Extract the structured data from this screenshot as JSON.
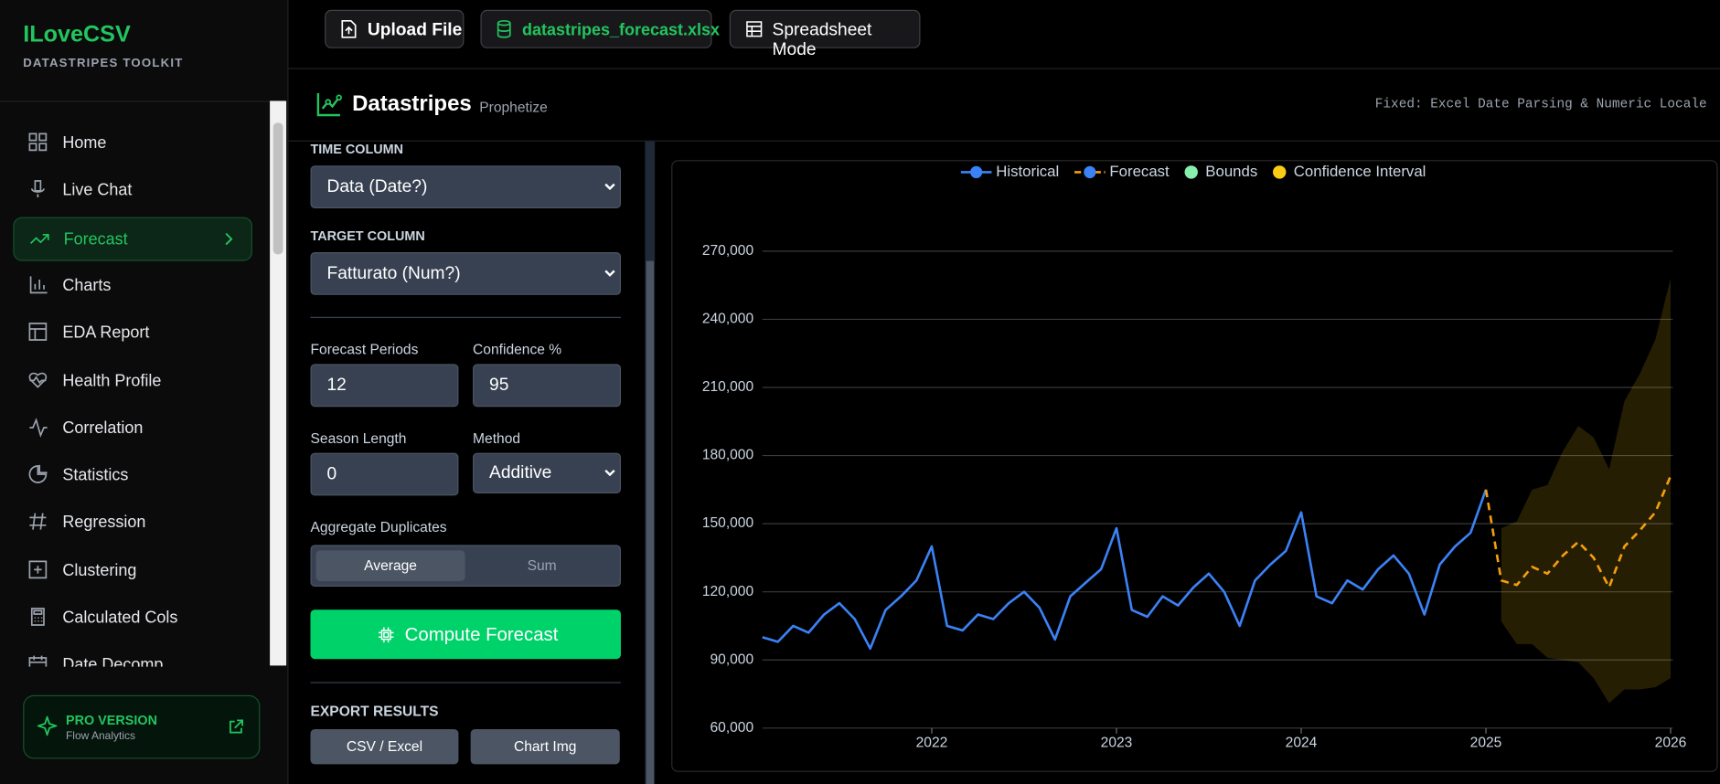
{
  "sidebar": {
    "brand": "ILoveCSV",
    "tagline": "DATASTRIPES TOOLKIT",
    "nav": [
      "Home",
      "Live Chat",
      "Forecast",
      "Charts",
      "EDA Report",
      "Health Profile",
      "Correlation",
      "Statistics",
      "Regression",
      "Clustering",
      "Calculated Cols",
      "Date Decomp"
    ],
    "pro": {
      "title": "PRO VERSION",
      "subtitle": "Flow Analytics"
    }
  },
  "toolbar": {
    "upload": "Upload File",
    "file": "datastripes_forecast.xlsx",
    "mode": "Spreadsheet Mode"
  },
  "header": {
    "title": "Datastripes",
    "subtitle": "Prophetize",
    "note": "Fixed: Excel Date Parsing & Numeric Locale"
  },
  "form": {
    "time_label": "TIME COLUMN",
    "time_value": "Data (Date?)",
    "target_label": "TARGET COLUMN",
    "target_value": "Fatturato (Num?)",
    "periods_label": "Forecast Periods",
    "periods_value": 12,
    "confidence_label": "Confidence %",
    "confidence_value": 95,
    "season_label": "Season Length",
    "season_value": 0,
    "method_label": "Method",
    "method_value": "Additive",
    "aggregate_label": "Aggregate Duplicates",
    "aggregate_options": [
      "Average",
      "Sum"
    ],
    "compute": "Compute Forecast",
    "export_label": "EXPORT RESULTS",
    "export_buttons": [
      "CSV / Excel",
      "Chart Img"
    ]
  },
  "chart_data": {
    "type": "line",
    "x": [
      2021.083,
      2021.167,
      2021.25,
      2021.333,
      2021.417,
      2021.5,
      2021.583,
      2021.667,
      2021.75,
      2021.833,
      2021.917,
      2022,
      2022.083,
      2022.167,
      2022.25,
      2022.333,
      2022.417,
      2022.5,
      2022.583,
      2022.667,
      2022.75,
      2022.833,
      2022.917,
      2023,
      2023.083,
      2023.167,
      2023.25,
      2023.333,
      2023.417,
      2023.5,
      2023.583,
      2023.667,
      2023.75,
      2023.833,
      2023.917,
      2024,
      2024.083,
      2024.167,
      2024.25,
      2024.333,
      2024.417,
      2024.5,
      2024.583,
      2024.667,
      2024.75,
      2024.833,
      2024.917,
      2025,
      2025.083,
      2025.167,
      2025.25,
      2025.333,
      2025.417,
      2025.5,
      2025.583,
      2025.667,
      2025.75,
      2025.833,
      2025.917,
      2026
    ],
    "series": [
      {
        "name": "Historical",
        "type": "line",
        "color": "#3b82f6",
        "point_color": "#3b82f6",
        "dashed": false,
        "values": [
          100000,
          98000,
          105000,
          102000,
          110000,
          115000,
          108000,
          95000,
          112000,
          118000,
          125000,
          140000,
          105000,
          103000,
          110000,
          108000,
          115000,
          120000,
          113000,
          99000,
          118000,
          124000,
          130000,
          148000,
          112000,
          109000,
          118000,
          114000,
          122000,
          128000,
          120000,
          105000,
          125000,
          132000,
          138000,
          155000,
          118000,
          115000,
          125000,
          121000,
          130000,
          136000,
          128000,
          110000,
          132000,
          140000,
          146000,
          165000,
          null,
          null,
          null,
          null,
          null,
          null,
          null,
          null,
          null,
          null,
          null,
          null
        ]
      },
      {
        "name": "Forecast",
        "type": "line",
        "color": "#f59e0b",
        "point_color": "#3b82f6",
        "dashed": true,
        "values": [
          null,
          null,
          null,
          null,
          null,
          null,
          null,
          null,
          null,
          null,
          null,
          null,
          null,
          null,
          null,
          null,
          null,
          null,
          null,
          null,
          null,
          null,
          null,
          null,
          null,
          null,
          null,
          null,
          null,
          null,
          null,
          null,
          null,
          null,
          null,
          null,
          null,
          null,
          null,
          null,
          null,
          null,
          null,
          null,
          null,
          null,
          null,
          165000,
          125000,
          123000,
          131000,
          128000,
          136000,
          142000,
          135000,
          122000,
          140000,
          147000,
          155000,
          171000
        ]
      },
      {
        "name": "Bounds",
        "type": "legend",
        "color": "#86efac"
      },
      {
        "name": "Confidence Interval",
        "type": "band",
        "color": "#facc15",
        "lower": [
          null,
          null,
          null,
          null,
          null,
          null,
          null,
          null,
          null,
          null,
          null,
          null,
          null,
          null,
          null,
          null,
          null,
          null,
          null,
          null,
          null,
          null,
          null,
          null,
          null,
          null,
          null,
          null,
          null,
          null,
          null,
          null,
          null,
          null,
          null,
          null,
          null,
          null,
          null,
          null,
          null,
          null,
          null,
          null,
          null,
          null,
          null,
          null,
          107000,
          97000,
          97000,
          91000,
          90000,
          89000,
          82000,
          71000,
          77000,
          77000,
          78000,
          82000
        ],
        "upper": [
          null,
          null,
          null,
          null,
          null,
          null,
          null,
          null,
          null,
          null,
          null,
          null,
          null,
          null,
          null,
          null,
          null,
          null,
          null,
          null,
          null,
          null,
          null,
          null,
          null,
          null,
          null,
          null,
          null,
          null,
          null,
          null,
          null,
          null,
          null,
          null,
          null,
          null,
          null,
          null,
          null,
          null,
          null,
          null,
          null,
          null,
          null,
          null,
          148000,
          151000,
          165000,
          167000,
          182000,
          193000,
          188000,
          174000,
          204000,
          216000,
          231000,
          258000
        ]
      }
    ],
    "xlim": [
      2021.083,
      2026
    ],
    "xticks": [
      2022,
      2023,
      2024,
      2025,
      2026
    ],
    "ylim": [
      60000,
      285000
    ],
    "yticks": [
      {
        "value": 60000,
        "label": "60,000"
      },
      {
        "value": 90000,
        "label": "90,000"
      },
      {
        "value": 120000,
        "label": "120,000"
      },
      {
        "value": 150000,
        "label": "150,000"
      },
      {
        "value": 180000,
        "label": "180,000"
      },
      {
        "value": 210000,
        "label": "210,000"
      },
      {
        "value": 240000,
        "label": "240,000"
      },
      {
        "value": 270000,
        "label": "270,000"
      }
    ],
    "grid": true,
    "legend": "top"
  }
}
